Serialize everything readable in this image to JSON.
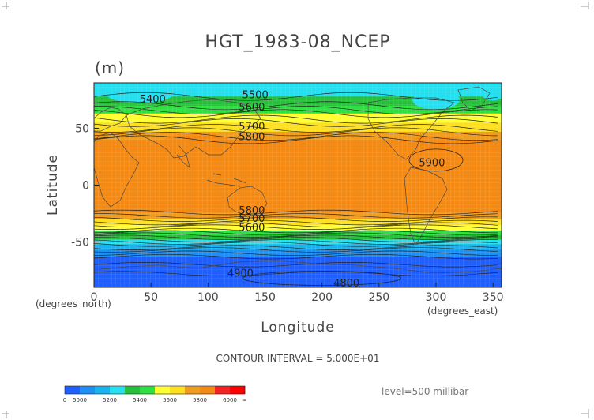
{
  "title": "HGT_1983-08_NCEP",
  "units": "(m)",
  "x_axis": {
    "label": "Longitude",
    "unit_label": "(degrees_east)",
    "ticks": [
      "0",
      "50",
      "100",
      "150",
      "200",
      "250",
      "300",
      "350"
    ],
    "range": [
      0,
      357.5
    ]
  },
  "y_axis": {
    "label": "Latitude",
    "unit_label": "(degrees_north)",
    "ticks": [
      "50",
      "0",
      "-50"
    ],
    "range": [
      -90,
      90
    ]
  },
  "contour_interval": "CONTOUR INTERVAL = 5.000E+01",
  "level_text": "level=500 millibar",
  "contour_labels": [
    {
      "text": "5400",
      "lon": 40,
      "lat": 76
    },
    {
      "text": "5500",
      "lon": 130,
      "lat": 80
    },
    {
      "text": "5600",
      "lon": 127,
      "lat": 69
    },
    {
      "text": "5700",
      "lon": 127,
      "lat": 52
    },
    {
      "text": "5800",
      "lon": 127,
      "lat": 43
    },
    {
      "text": "5900",
      "lon": 285,
      "lat": 20
    },
    {
      "text": "5800",
      "lon": 127,
      "lat": -22
    },
    {
      "text": "5700",
      "lon": 127,
      "lat": -29
    },
    {
      "text": "5600",
      "lon": 127,
      "lat": -37
    },
    {
      "text": "4900",
      "lon": 117,
      "lat": -77
    },
    {
      "text": "4800",
      "lon": 210,
      "lat": -86
    }
  ],
  "colorbar": {
    "ticks": [
      "0",
      "5000",
      "5200",
      "5400",
      "5600",
      "5800",
      "6000",
      "∞"
    ],
    "colors": [
      "#1f5fff",
      "#1e8ff5",
      "#19b3f0",
      "#24e0f0",
      "#27c03a",
      "#2ee040",
      "#ffff33",
      "#ffe020",
      "#f09c1e",
      "#f48a14",
      "#f52222",
      "#ff0000"
    ]
  }
}
